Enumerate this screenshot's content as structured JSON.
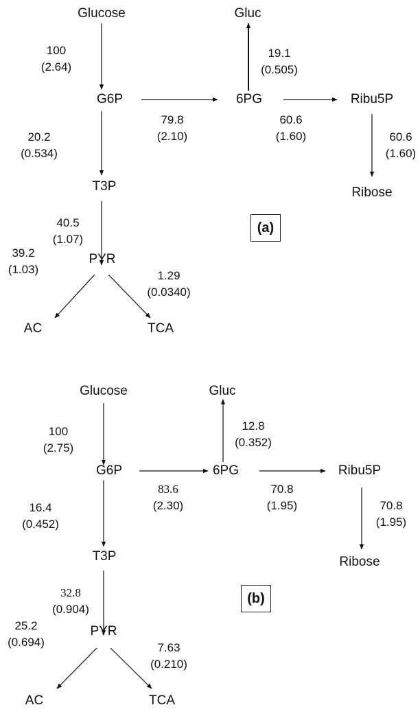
{
  "panel_a": {
    "tag": "(a)",
    "nodes": {
      "glucose": "Glucose",
      "g6p": "G6P",
      "six_pg": "6PG",
      "gluc": "Gluc",
      "ribu5p": "Ribu5P",
      "ribose": "Ribose",
      "t3p": "T3P",
      "pyr": "PYR",
      "ac": "AC",
      "tca": "TCA"
    },
    "fluxes": {
      "glucose_g6p": {
        "value": "100",
        "rate": "(2.64)"
      },
      "g6p_6pg": {
        "value": "79.8",
        "rate": "(2.10)"
      },
      "6pg_gluc": {
        "value": "19.1",
        "rate": "(0.505)"
      },
      "6pg_ribu5p": {
        "value": "60.6",
        "rate": "(1.60)"
      },
      "ribu5p_ribose": {
        "value": "60.6",
        "rate": "(1.60)"
      },
      "g6p_t3p": {
        "value": "20.2",
        "rate": "(0.534)"
      },
      "t3p_pyr": {
        "value": "40.5",
        "rate": "(1.07)"
      },
      "pyr_ac": {
        "value": "39.2",
        "rate": "(1.03)"
      },
      "pyr_tca": {
        "value": "1.29",
        "rate": "(0.0340)"
      }
    }
  },
  "panel_b": {
    "tag": "(b)",
    "nodes": {
      "glucose": "Glucose",
      "g6p": "G6P",
      "six_pg": "6PG",
      "gluc": "Gluc",
      "ribu5p": "Ribu5P",
      "ribose": "Ribose",
      "t3p": "T3P",
      "pyr": "PYR",
      "ac": "AC",
      "tca": "TCA"
    },
    "fluxes": {
      "glucose_g6p": {
        "value": "100",
        "rate": "(2.75)"
      },
      "g6p_6pg": {
        "value": "83.6",
        "rate": "(2.30)"
      },
      "6pg_gluc": {
        "value": "12.8",
        "rate": "(0.352)"
      },
      "6pg_ribu5p": {
        "value": "70.8",
        "rate": "(1.95)"
      },
      "ribu5p_ribose": {
        "value": "70.8",
        "rate": "(1.95)"
      },
      "g6p_t3p": {
        "value": "16.4",
        "rate": "(0.452)"
      },
      "t3p_pyr": {
        "value": "32.8",
        "rate": "(0.904)"
      },
      "pyr_ac": {
        "value": "25.2",
        "rate": "(0.694)"
      },
      "pyr_tca": {
        "value": "7.63",
        "rate": "(0.210)"
      }
    }
  }
}
